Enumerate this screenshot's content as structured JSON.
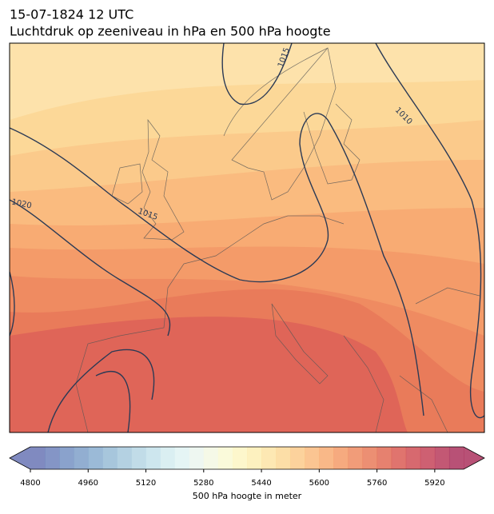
{
  "header": {
    "title": "15-07-1824 12 UTC",
    "subtitle": "Luchtdruk op zeeniveau in hPa en 500 hPa hoogte"
  },
  "map": {
    "contour_labels": [
      "1015",
      "1010",
      "1020",
      "1015"
    ]
  },
  "colorbar": {
    "label": "500 hPa hoogte in meter",
    "clim": [
      4800,
      6000
    ],
    "ticks": [
      4800,
      4960,
      5120,
      5280,
      5440,
      5600,
      5760,
      5920
    ],
    "colors": [
      "#6a75b5",
      "#6e83bc",
      "#7692c3",
      "#7fa0c9",
      "#8aaed0",
      "#98bcd6",
      "#a7c9dd",
      "#b6d6e4",
      "#c4e2eb",
      "#d3ecf0",
      "#e1f3f3",
      "#ebf6ee",
      "#f3f8e3",
      "#f9f9d3",
      "#fdf6c3",
      "#fdeeb4",
      "#fde4a6",
      "#fcd898",
      "#fbca8b",
      "#fabb7f",
      "#f8ab73",
      "#f49b69",
      "#ef8b61",
      "#e97b5a",
      "#e26b56",
      "#da5c55",
      "#d04f56",
      "#c54459",
      "#b93b5c",
      "#ab335e"
    ]
  }
}
